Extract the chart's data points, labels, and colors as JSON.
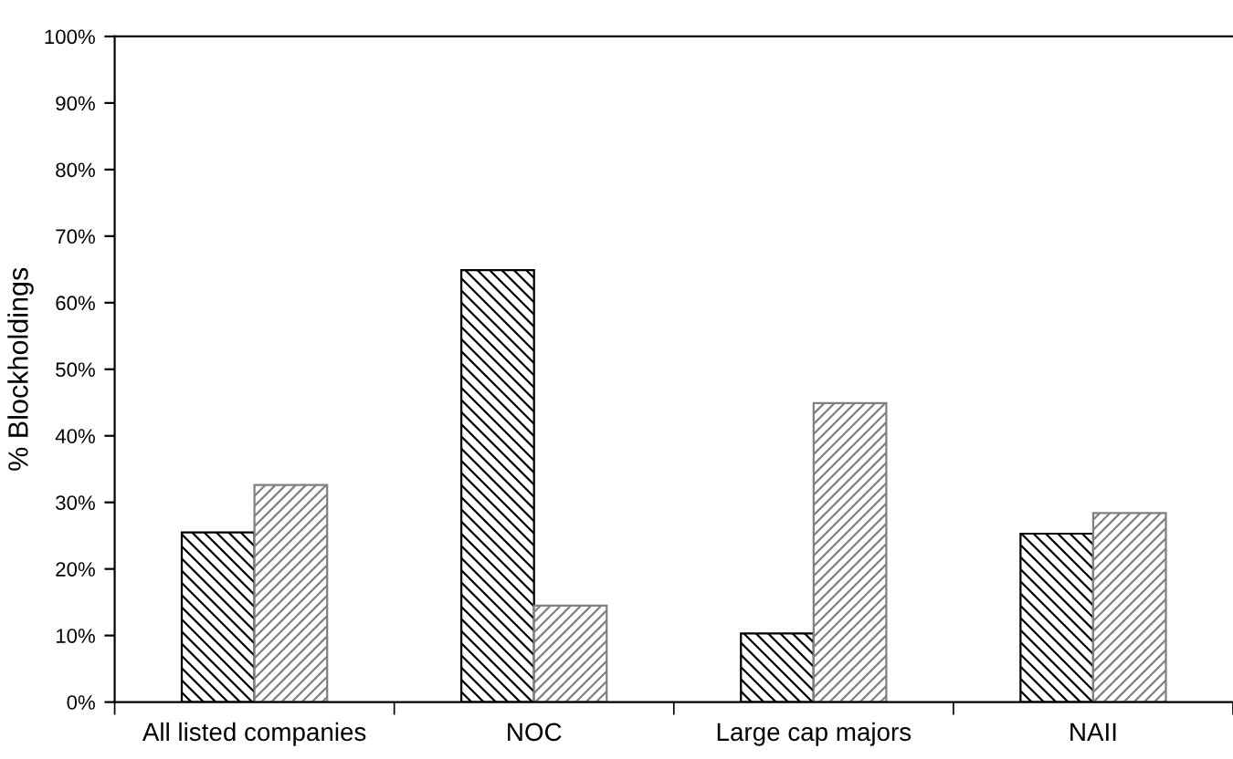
{
  "chart_data": {
    "type": "bar",
    "ylabel": "% Blockholdings",
    "categories": [
      "All listed companies",
      "NOC",
      "Large cap majors",
      "NAII"
    ],
    "series": [
      {
        "color": "#000000",
        "values": [
          25.5,
          64.9,
          10.3,
          25.3
        ]
      },
      {
        "color": "#808080",
        "values": [
          32.6,
          14.5,
          44.9,
          28.4
        ]
      }
    ],
    "ylim": [
      0,
      100
    ],
    "yticks": [
      {
        "value": 0,
        "label": "0%"
      },
      {
        "value": 10,
        "label": "10%"
      },
      {
        "value": 20,
        "label": "20%"
      },
      {
        "value": 30,
        "label": "30%"
      },
      {
        "value": 40,
        "label": "40%"
      },
      {
        "value": 50,
        "label": "50%"
      },
      {
        "value": 60,
        "label": "60%"
      },
      {
        "value": 70,
        "label": "70%"
      },
      {
        "value": 80,
        "label": "80%"
      },
      {
        "value": 90,
        "label": "90%"
      },
      {
        "value": 100,
        "label": "100%"
      }
    ],
    "grid": false,
    "legend": false
  }
}
